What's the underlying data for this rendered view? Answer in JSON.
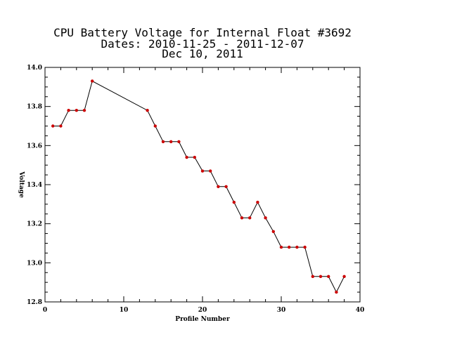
{
  "chart_data": {
    "type": "line",
    "title_lines": [
      "CPU Battery Voltage for Internal Float #3692",
      "Dates:  2010-11-25 -  2011-12-07",
      "Dec 10, 2011"
    ],
    "xlabel": "Profile Number",
    "ylabel": "Voltage",
    "xlim": [
      0,
      40
    ],
    "ylim": [
      12.8,
      14.0
    ],
    "x_ticks": [
      0,
      10,
      20,
      30,
      40
    ],
    "x_tick_labels": [
      "0",
      "10",
      "20",
      "30",
      "40"
    ],
    "y_ticks": [
      12.8,
      13.0,
      13.2,
      13.4,
      13.6,
      13.8,
      14.0
    ],
    "y_tick_labels": [
      "12.8",
      "13.0",
      "13.2",
      "13.4",
      "13.6",
      "13.8",
      "14.0"
    ],
    "grid": false,
    "line_color": "#000000",
    "marker_color": "#cc0000",
    "series": [
      {
        "x": [
          1,
          2,
          3,
          4,
          5,
          6,
          13,
          14,
          15,
          16,
          17,
          18,
          19,
          20,
          21,
          22,
          23,
          24,
          25,
          26,
          27,
          28,
          29,
          30,
          31,
          32,
          33,
          34,
          35,
          36,
          37,
          38
        ],
        "y": [
          13.7,
          13.7,
          13.78,
          13.78,
          13.78,
          13.93,
          13.78,
          13.7,
          13.62,
          13.62,
          13.62,
          13.54,
          13.54,
          13.47,
          13.47,
          13.39,
          13.39,
          13.31,
          13.23,
          13.23,
          13.31,
          13.23,
          13.16,
          13.08,
          13.08,
          13.08,
          13.08,
          12.93,
          12.93,
          12.93,
          12.85,
          12.93
        ]
      }
    ]
  }
}
